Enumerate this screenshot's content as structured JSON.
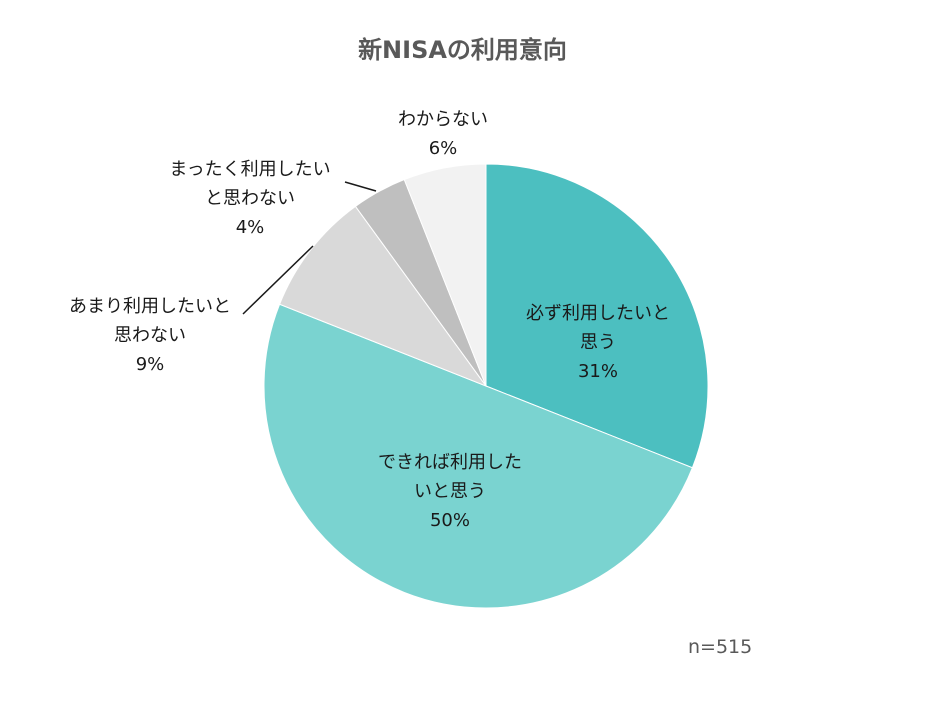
{
  "title": "新NISAの利用意向",
  "note": "n=515",
  "chart_data": {
    "type": "pie",
    "title": "新NISAの利用意向",
    "start": "12 o'clock",
    "direction": "clockwise",
    "slices": [
      {
        "label_lines": [
          "必ず利用したいと",
          "思う"
        ],
        "value": 31,
        "value_text": "31%",
        "color": "#4cbfc0"
      },
      {
        "label_lines": [
          "できれば利用した",
          "いと思う"
        ],
        "value": 50,
        "value_text": "50%",
        "color": "#7ad3d0"
      },
      {
        "label_lines": [
          "あまり利用したいと",
          "思わない"
        ],
        "value": 9,
        "value_text": "9%",
        "color": "#d9d9d9"
      },
      {
        "label_lines": [
          "まったく利用したい",
          "と思わない"
        ],
        "value": 4,
        "value_text": "4%",
        "color": "#bfbfbf"
      },
      {
        "label_lines": [
          "わからない"
        ],
        "value": 6,
        "value_text": "6%",
        "color": "#f2f2f2"
      }
    ],
    "note": "n=515"
  }
}
